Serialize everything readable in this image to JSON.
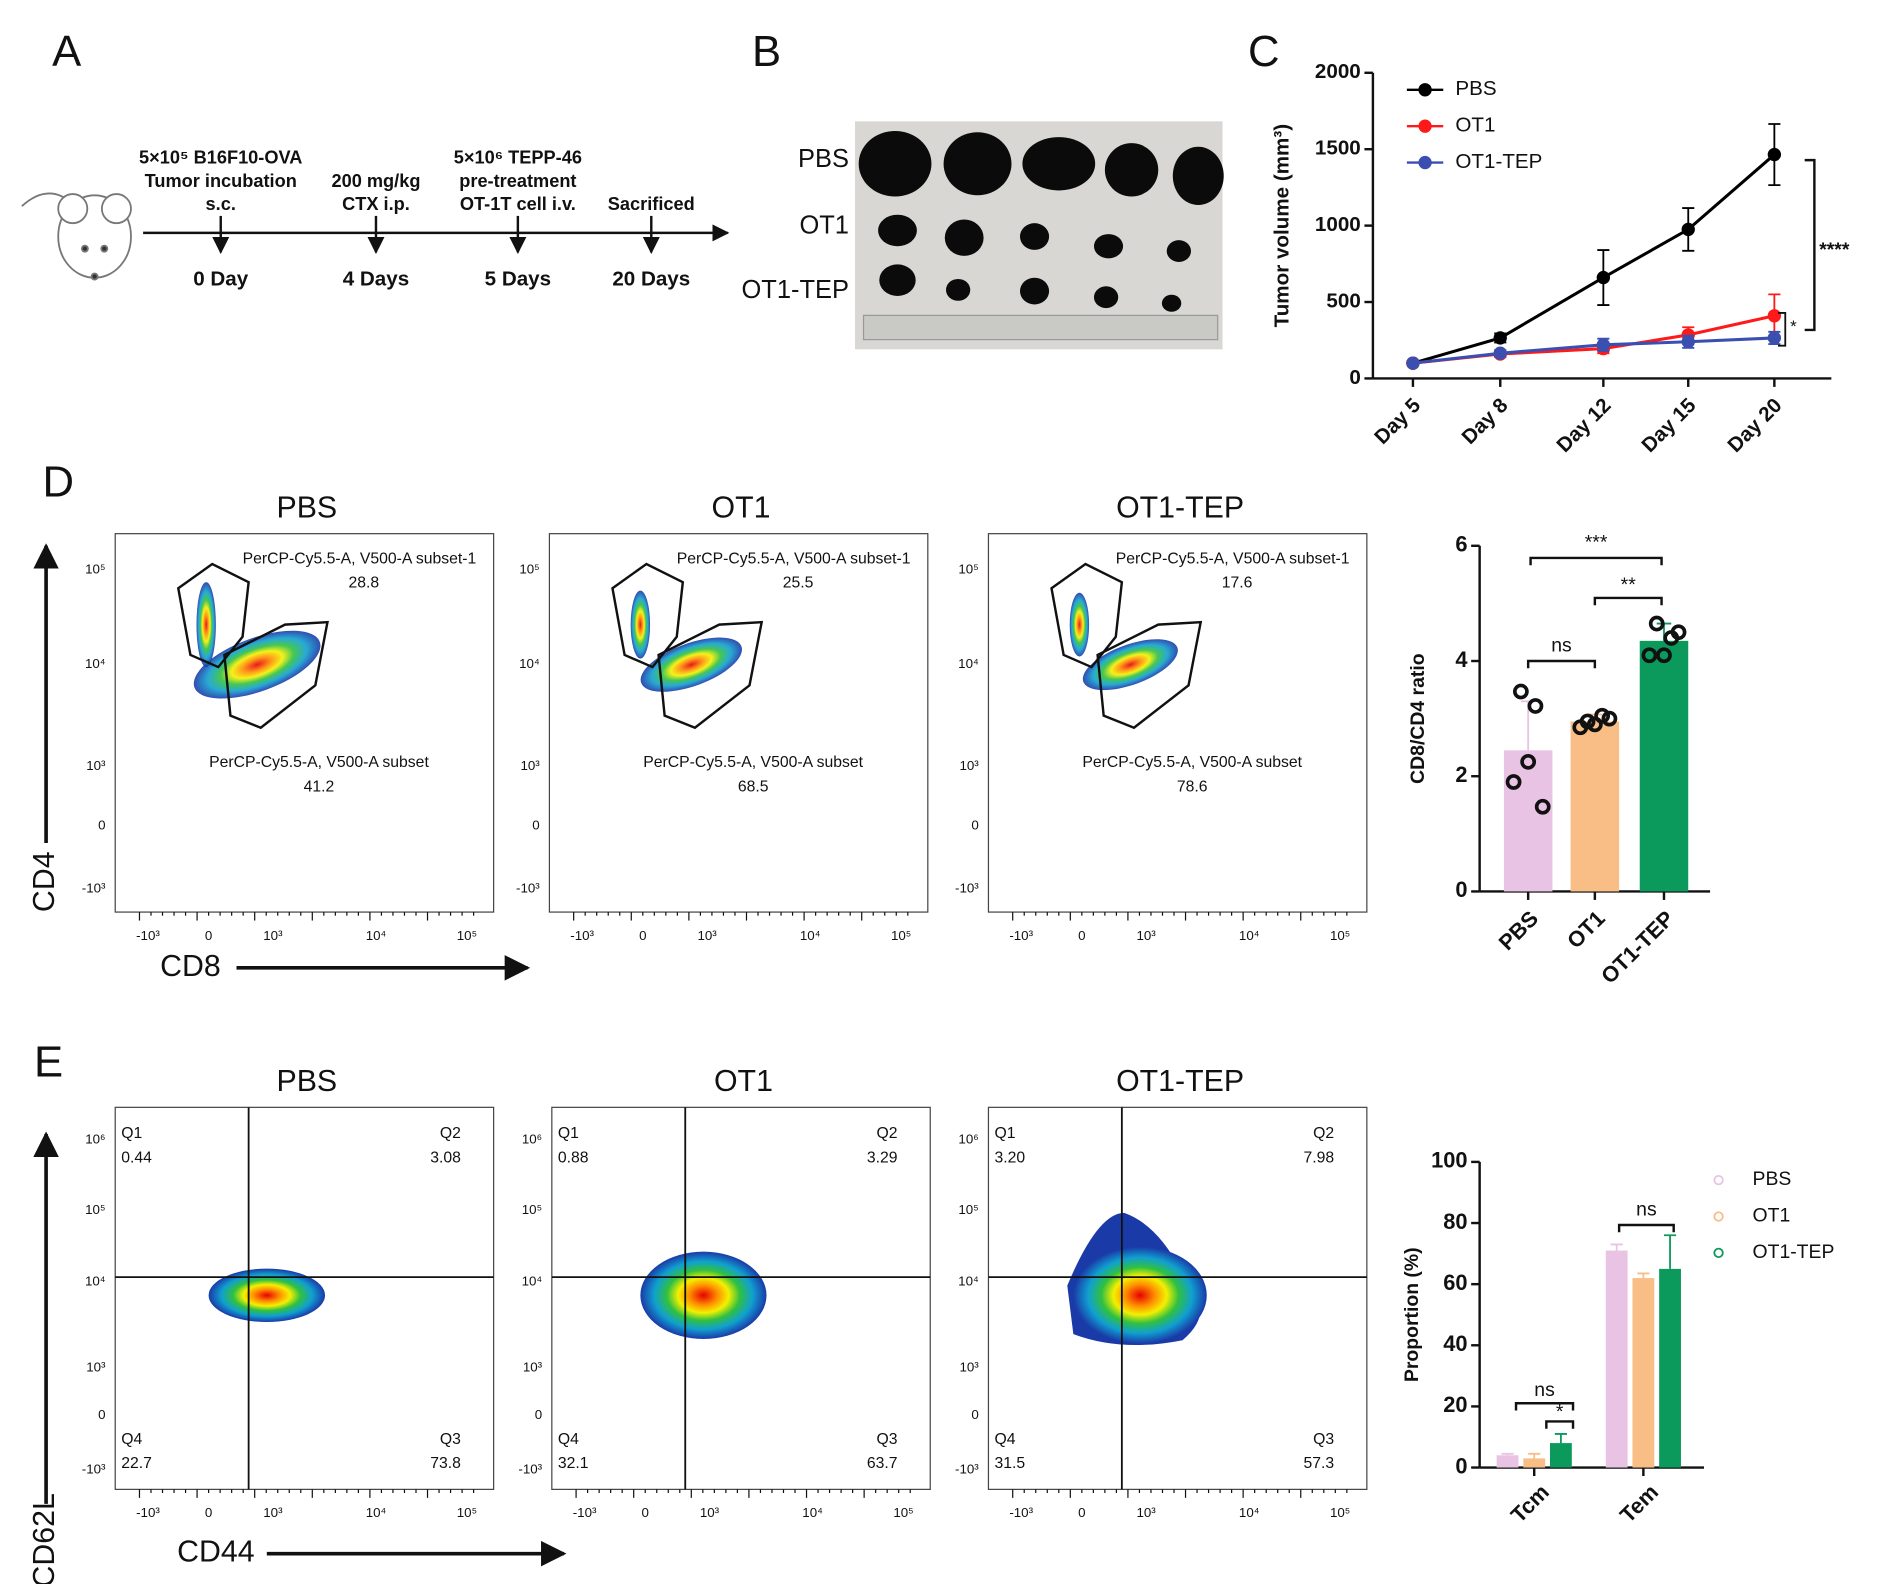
{
  "panel_labels": [
    "A",
    "B",
    "C",
    "D",
    "E"
  ],
  "timeline": {
    "events": [
      {
        "lines": [
          "5×10⁵ B16F10-OVA",
          "Tumor incubation",
          "s.c."
        ],
        "day": "0 Day"
      },
      {
        "lines": [
          "200 mg/kg",
          "CTX i.p."
        ],
        "day": "4 Days"
      },
      {
        "lines": [
          "5×10⁶ TEPP-46",
          "pre-treatment",
          "OT-1T cell i.v."
        ],
        "day": "5 Days"
      },
      {
        "lines": [
          "Sacrificed"
        ],
        "day": "20 Days"
      }
    ]
  },
  "photo": {
    "rows": [
      "PBS",
      "OT1",
      "OT1-TEP"
    ]
  },
  "flow_d": {
    "x_label": "CD8",
    "y_label": "CD4",
    "xticks": [
      "-10³",
      "0",
      "10³",
      "10⁴",
      "10⁵"
    ],
    "yticks": [
      "10⁵",
      "10⁴",
      "10³",
      "0",
      "-10³"
    ],
    "plots": [
      {
        "title": "PBS",
        "gate1_label": "PerCP-Cy5.5-A, V500-A subset-1",
        "gate1_value": "28.8",
        "gate2_label": "PerCP-Cy5.5-A, V500-A subset",
        "gate2_value": "41.2"
      },
      {
        "title": "OT1",
        "gate1_label": "PerCP-Cy5.5-A, V500-A subset-1",
        "gate1_value": "25.5",
        "gate2_label": "PerCP-Cy5.5-A, V500-A subset",
        "gate2_value": "68.5"
      },
      {
        "title": "OT1-TEP",
        "gate1_label": "PerCP-Cy5.5-A, V500-A subset-1",
        "gate1_value": "17.6",
        "gate2_label": "PerCP-Cy5.5-A, V500-A subset",
        "gate2_value": "78.6"
      }
    ]
  },
  "flow_e": {
    "x_label": "CD44",
    "y_label": "CD62L",
    "xticks": [
      "-10³",
      "0",
      "10³",
      "10⁴",
      "10⁵"
    ],
    "yticks": [
      "10⁶",
      "10⁵",
      "10⁴",
      "10³",
      "0",
      "-10³"
    ],
    "quadrant_names": [
      "Q1",
      "Q2",
      "Q4",
      "Q3"
    ],
    "plots": [
      {
        "title": "PBS",
        "quadrants": [
          "0.44",
          "3.08",
          "22.7",
          "73.8"
        ]
      },
      {
        "title": "OT1",
        "quadrants": [
          "0.88",
          "3.29",
          "32.1",
          "63.7"
        ]
      },
      {
        "title": "OT1-TEP",
        "quadrants": [
          "3.20",
          "7.98",
          "31.5",
          "57.3"
        ]
      }
    ]
  },
  "chart_data": [
    {
      "type": "line",
      "y_label": "Tumor volume (mm³)",
      "categories": [
        "Day 5",
        "Day 8",
        "Day 12",
        "Day 15",
        "Day 20"
      ],
      "series": [
        {
          "name": "PBS",
          "color": "#000000",
          "values": [
            100,
            265,
            660,
            975,
            1465
          ],
          "errors": [
            15,
            30,
            180,
            140,
            200
          ]
        },
        {
          "name": "OT1",
          "color": "#ff1a1a",
          "values": [
            100,
            160,
            195,
            285,
            410
          ],
          "errors": [
            10,
            20,
            30,
            50,
            140
          ]
        },
        {
          "name": "OT1-TEP",
          "color": "#3a4fb0",
          "values": [
            100,
            165,
            220,
            240,
            265
          ],
          "errors": [
            10,
            20,
            40,
            40,
            40
          ]
        }
      ],
      "ylim": [
        0,
        2000
      ],
      "yticks": [
        0,
        500,
        1000,
        1500,
        2000
      ],
      "annotations": [
        "****",
        "*"
      ]
    },
    {
      "type": "bar",
      "y_label": "CD8/CD4 ratio",
      "categories": [
        "PBS",
        "OT1",
        "OT1-TEP"
      ],
      "values": [
        2.45,
        2.95,
        4.35
      ],
      "errors": [
        0.85,
        0.12,
        0.3
      ],
      "colors": [
        "#e8c3e3",
        "#f9be85",
        "#0b9a5c"
      ],
      "points": [
        [
          3.47,
          3.22,
          2.25,
          1.9,
          1.47
        ],
        [
          2.95,
          3.05,
          2.9,
          2.85,
          3.0
        ],
        [
          4.65,
          4.4,
          4.1,
          4.1,
          4.5
        ]
      ],
      "ylim": [
        0,
        6
      ],
      "yticks": [
        0,
        2,
        4,
        6
      ],
      "annotations": [
        "ns",
        "**",
        "***"
      ]
    },
    {
      "type": "grouped_bar",
      "y_label": "Proportion (%)",
      "categories": [
        "Tcm",
        "Tem"
      ],
      "series": [
        {
          "name": "PBS",
          "color": "#e8c3e3",
          "values": [
            4,
            71
          ],
          "errors": [
            0.5,
            2
          ]
        },
        {
          "name": "OT1",
          "color": "#f9be85",
          "values": [
            3,
            62
          ],
          "errors": [
            1.5,
            1.5
          ]
        },
        {
          "name": "OT1-TEP",
          "color": "#0b9a5c",
          "values": [
            8,
            65
          ],
          "errors": [
            3,
            11
          ]
        }
      ],
      "ylim": [
        0,
        100
      ],
      "yticks": [
        0,
        20,
        40,
        60,
        80,
        100
      ],
      "annotations": [
        "ns",
        "*",
        "ns"
      ]
    }
  ]
}
